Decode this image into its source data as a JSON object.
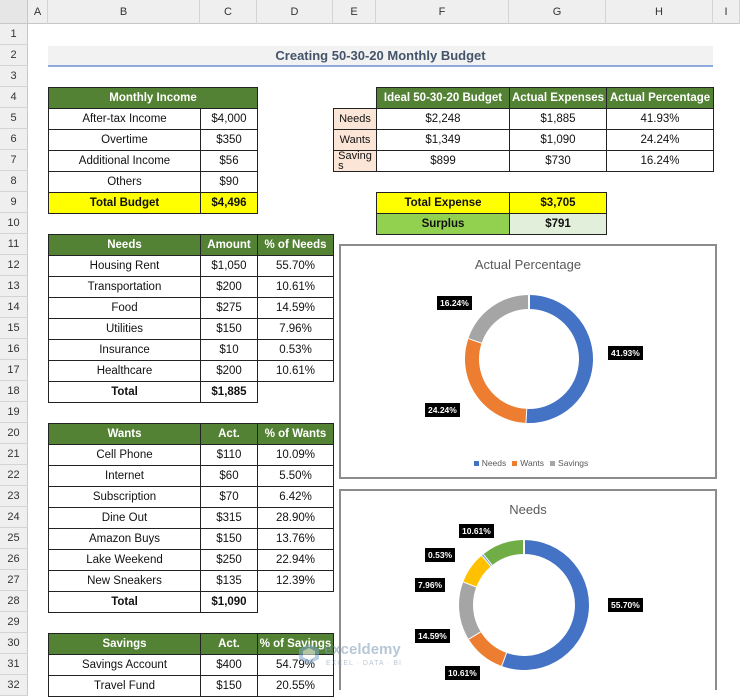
{
  "columns": [
    "A",
    "B",
    "C",
    "D",
    "E",
    "F",
    "G",
    "H",
    "I"
  ],
  "rows": [
    "1",
    "2",
    "3",
    "4",
    "5",
    "6",
    "7",
    "8",
    "9",
    "10",
    "11",
    "12",
    "13",
    "14",
    "15",
    "16",
    "17",
    "18",
    "19",
    "20",
    "21",
    "22",
    "23",
    "24",
    "25",
    "26",
    "27",
    "28",
    "29",
    "30",
    "31",
    "32"
  ],
  "title": "Creating 50-30-20 Monthly Budget",
  "income": {
    "header": "Monthly Income",
    "items": [
      {
        "label": "After-tax Income",
        "value": "$4,000"
      },
      {
        "label": "Overtime",
        "value": "$350"
      },
      {
        "label": "Additional Income",
        "value": "$56"
      },
      {
        "label": "Others",
        "value": "$90"
      }
    ],
    "total_label": "Total Budget",
    "total_value": "$4,496"
  },
  "summary": {
    "headers": [
      "Ideal 50-30-20 Budget",
      "Actual Expenses",
      "Actual Percentage"
    ],
    "rows": [
      {
        "label": "Needs",
        "ideal": "$2,248",
        "actual": "$1,885",
        "pct": "41.93%"
      },
      {
        "label": "Wants",
        "ideal": "$1,349",
        "actual": "$1,090",
        "pct": "24.24%"
      },
      {
        "label": "Saving\ns",
        "ideal": "$899",
        "actual": "$730",
        "pct": "16.24%"
      }
    ],
    "total_expense_label": "Total Expense",
    "total_expense_value": "$3,705",
    "surplus_label": "Surplus",
    "surplus_value": "$791"
  },
  "needs": {
    "headers": [
      "Needs",
      "Amount",
      "% of Needs"
    ],
    "items": [
      {
        "label": "Housing Rent",
        "amount": "$1,050",
        "pct": "55.70%"
      },
      {
        "label": "Transportation",
        "amount": "$200",
        "pct": "10.61%"
      },
      {
        "label": "Food",
        "amount": "$275",
        "pct": "14.59%"
      },
      {
        "label": "Utilities",
        "amount": "$150",
        "pct": "7.96%"
      },
      {
        "label": "Insurance",
        "amount": "$10",
        "pct": "0.53%"
      },
      {
        "label": "Healthcare",
        "amount": "$200",
        "pct": "10.61%"
      }
    ],
    "total_label": "Total",
    "total_value": "$1,885"
  },
  "wants": {
    "headers": [
      "Wants",
      "Act.",
      "% of Wants"
    ],
    "items": [
      {
        "label": "Cell Phone",
        "amount": "$110",
        "pct": "10.09%"
      },
      {
        "label": "Internet",
        "amount": "$60",
        "pct": "5.50%"
      },
      {
        "label": "Subscription",
        "amount": "$70",
        "pct": "6.42%"
      },
      {
        "label": "Dine Out",
        "amount": "$315",
        "pct": "28.90%"
      },
      {
        "label": "Amazon Buys",
        "amount": "$150",
        "pct": "13.76%"
      },
      {
        "label": "Lake Weekend",
        "amount": "$250",
        "pct": "22.94%"
      },
      {
        "label": "New Sneakers",
        "amount": "$135",
        "pct": "12.39%"
      }
    ],
    "total_label": "Total",
    "total_value": "$1,090"
  },
  "savings": {
    "headers": [
      "Savings",
      "Act.",
      "% of Savings"
    ],
    "items": [
      {
        "label": "Savings Account",
        "amount": "$400",
        "pct": "54.79%"
      },
      {
        "label": "Travel Fund",
        "amount": "$150",
        "pct": "20.55%"
      }
    ]
  },
  "watermark": {
    "name": "exceldemy",
    "tagline": "EXCEL · DATA · BI"
  },
  "chart_data": [
    {
      "type": "pie",
      "title": "Actual Percentage",
      "categories": [
        "Needs",
        "Wants",
        "Savings"
      ],
      "values": [
        41.93,
        24.24,
        16.24
      ],
      "labels": [
        "41.93%",
        "24.24%",
        "16.24%"
      ],
      "colors": [
        "#4472c4",
        "#ed7d31",
        "#a5a5a5"
      ],
      "legend": "bottom"
    },
    {
      "type": "pie",
      "title": "Needs",
      "categories": [
        "Housing Rent",
        "Transportation",
        "Food",
        "Utilities",
        "Insurance",
        "Healthcare"
      ],
      "values": [
        55.7,
        10.61,
        14.59,
        7.96,
        0.53,
        10.61
      ],
      "labels": [
        "55.70%",
        "10.61%",
        "14.59%",
        "7.96%",
        "0.53%",
        "10.61%"
      ],
      "colors": [
        "#4472c4",
        "#ed7d31",
        "#a5a5a5",
        "#ffc000",
        "#5b9bd5",
        "#70ad47"
      ]
    }
  ]
}
